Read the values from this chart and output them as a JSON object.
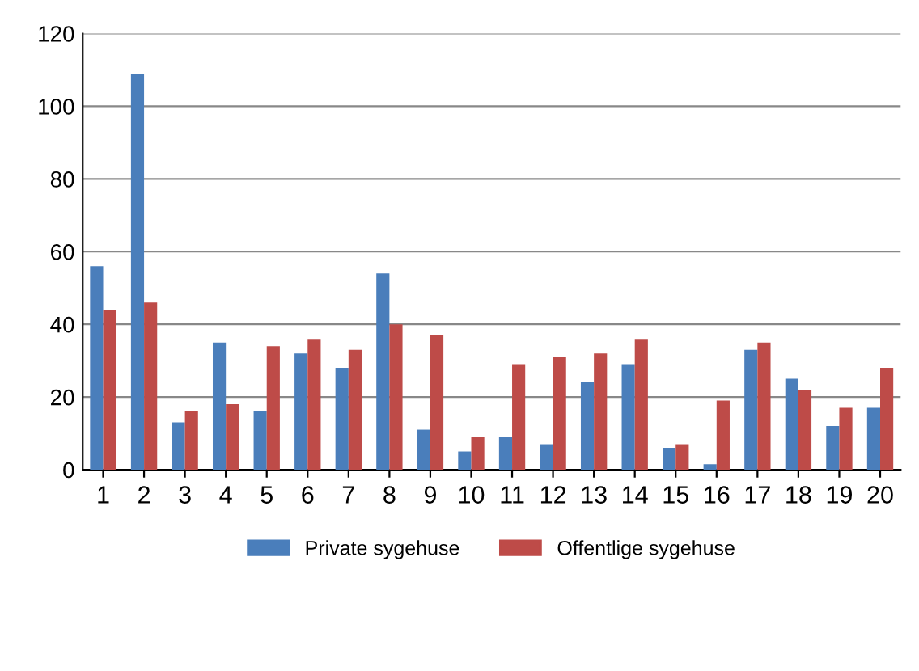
{
  "chart_data": {
    "type": "bar",
    "categories": [
      "1",
      "2",
      "3",
      "4",
      "5",
      "6",
      "7",
      "8",
      "9",
      "10",
      "11",
      "12",
      "13",
      "14",
      "15",
      "16",
      "17",
      "18",
      "19",
      "20"
    ],
    "series": [
      {
        "name": "Private sygehuse",
        "color": "#4a7ebb",
        "values": [
          56,
          109,
          13,
          35,
          16,
          32,
          28,
          54,
          11,
          5,
          9,
          7,
          24,
          29,
          6,
          1.5,
          33,
          25,
          12,
          17
        ]
      },
      {
        "name": "Offentlige sygehuse",
        "color": "#be4b48",
        "values": [
          44,
          46,
          16,
          18,
          34,
          36,
          33,
          40,
          37,
          9,
          29,
          31,
          32,
          36,
          7,
          19,
          35,
          22,
          17,
          28
        ]
      }
    ],
    "ylim": [
      0,
      120
    ],
    "yticks": [
      0,
      20,
      40,
      60,
      80,
      100,
      120
    ],
    "grid": "y",
    "legend": "bottom"
  }
}
